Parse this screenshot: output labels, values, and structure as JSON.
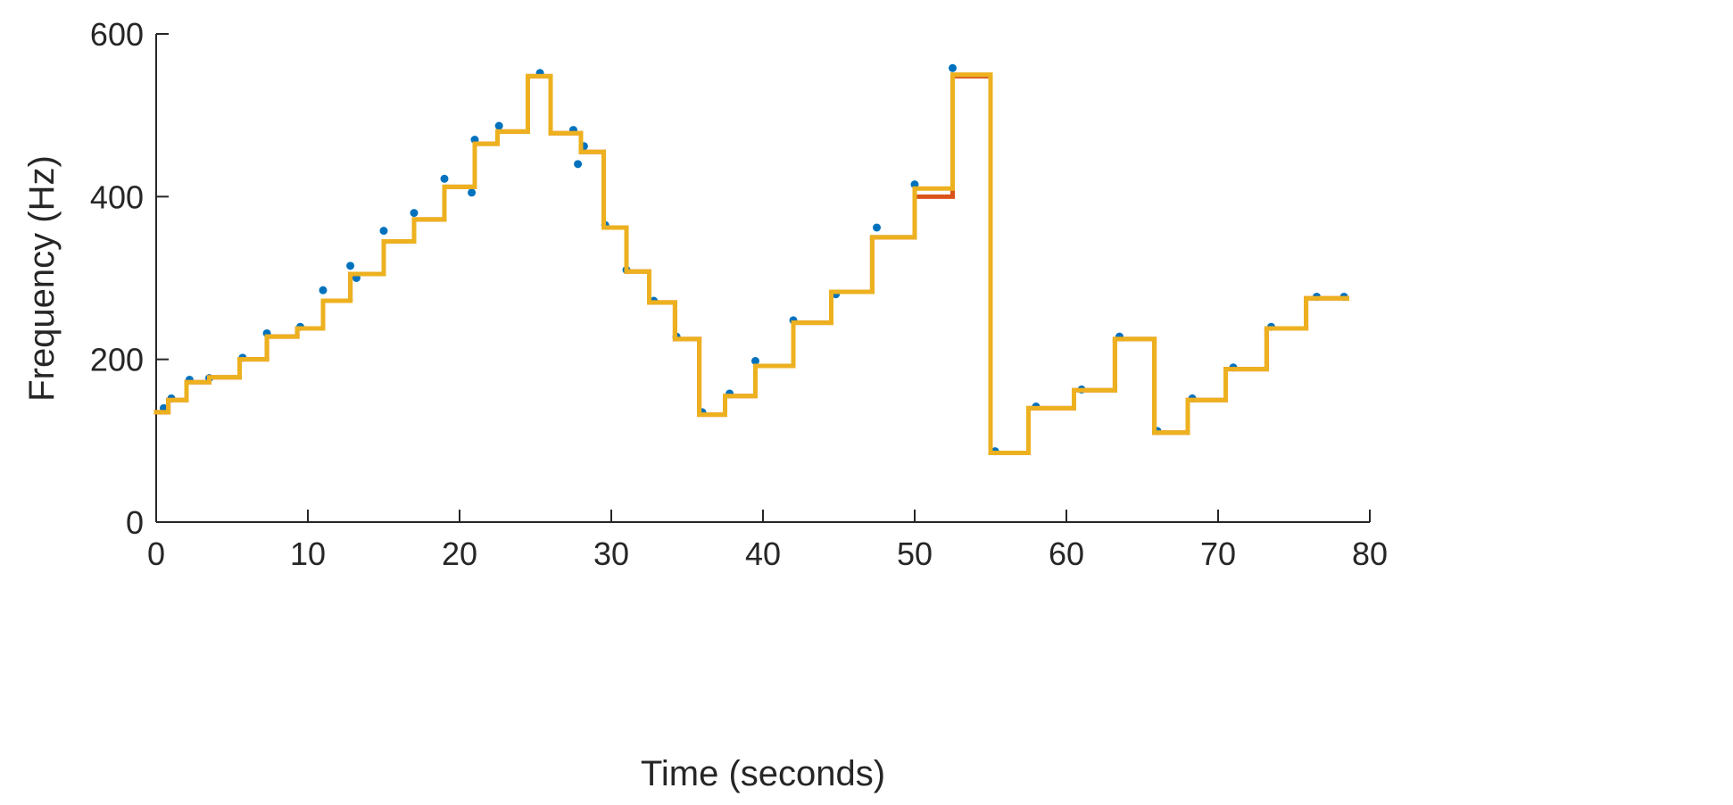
{
  "chart_data": {
    "type": "line",
    "xlabel": "Time (seconds)",
    "ylabel": "Frequency (Hz)",
    "xlim": [
      0,
      80
    ],
    "xticks": [
      0,
      10,
      20,
      30,
      40,
      50,
      60,
      70,
      80
    ],
    "ylim": [
      0,
      600
    ],
    "yticks": [
      0,
      200,
      400,
      600
    ],
    "grid": false,
    "series": [
      {
        "color": "#0072bd",
        "style": "markers",
        "x": [
          0.5,
          1,
          2.2,
          3.5,
          5.7,
          7.3,
          9.5,
          11,
          12.8,
          13.2,
          15,
          17,
          19,
          20.8,
          21,
          22.6,
          25.3,
          27.5,
          27.8,
          28.2,
          29.6,
          31,
          32.8,
          34.3,
          36,
          37.8,
          39.5,
          42,
          44.8,
          47.5,
          50,
          52.5,
          55.3,
          58,
          61,
          63.5,
          66,
          68.3,
          71,
          73.5,
          76.5,
          78.3
        ],
        "values": [
          140,
          152,
          175,
          177,
          202,
          232,
          240,
          285,
          315,
          300,
          358,
          380,
          422,
          405,
          470,
          487,
          552,
          482,
          440,
          462,
          365,
          310,
          272,
          228,
          135,
          158,
          198,
          248,
          280,
          362,
          415,
          558,
          87,
          142,
          163,
          228,
          112,
          152,
          190,
          240,
          277,
          277
        ]
      },
      {
        "color": "#d95319",
        "style": "step",
        "x": [
          0,
          0.8,
          2,
          3.5,
          5.5,
          7.3,
          9.3,
          11,
          12.8,
          15,
          17,
          19,
          21,
          22.5,
          24.5,
          26,
          28,
          29.5,
          31,
          32.5,
          34.2,
          35.8,
          37.5,
          39.5,
          42,
          44.5,
          47.2,
          50,
          52.5,
          55,
          57.5,
          60.5,
          63.2,
          65.8,
          68,
          70.5,
          73.2,
          75.8,
          78.5
        ],
        "values": [
          135,
          150,
          172,
          178,
          200,
          228,
          238,
          272,
          305,
          345,
          372,
          412,
          465,
          480,
          548,
          478,
          455,
          362,
          308,
          270,
          225,
          132,
          155,
          192,
          245,
          283,
          350,
          400,
          548,
          85,
          140,
          162,
          225,
          110,
          150,
          188,
          238,
          275,
          275
        ]
      },
      {
        "color": "#edb120",
        "style": "step",
        "x": [
          0,
          0.8,
          2,
          3.5,
          5.5,
          7.3,
          9.3,
          11,
          12.8,
          15,
          17,
          19,
          21,
          22.5,
          24.5,
          26,
          28,
          29.5,
          31,
          32.5,
          34.2,
          35.8,
          37.5,
          39.5,
          42,
          44.5,
          47.2,
          50,
          52.5,
          55,
          57.5,
          60.5,
          63.2,
          65.8,
          68,
          70.5,
          73.2,
          75.8,
          78.5
        ],
        "values": [
          135,
          150,
          172,
          178,
          200,
          228,
          238,
          272,
          305,
          345,
          372,
          412,
          465,
          480,
          548,
          478,
          455,
          362,
          308,
          270,
          225,
          132,
          155,
          192,
          245,
          283,
          350,
          410,
          550,
          85,
          140,
          162,
          225,
          110,
          150,
          188,
          238,
          275,
          275
        ]
      }
    ]
  }
}
